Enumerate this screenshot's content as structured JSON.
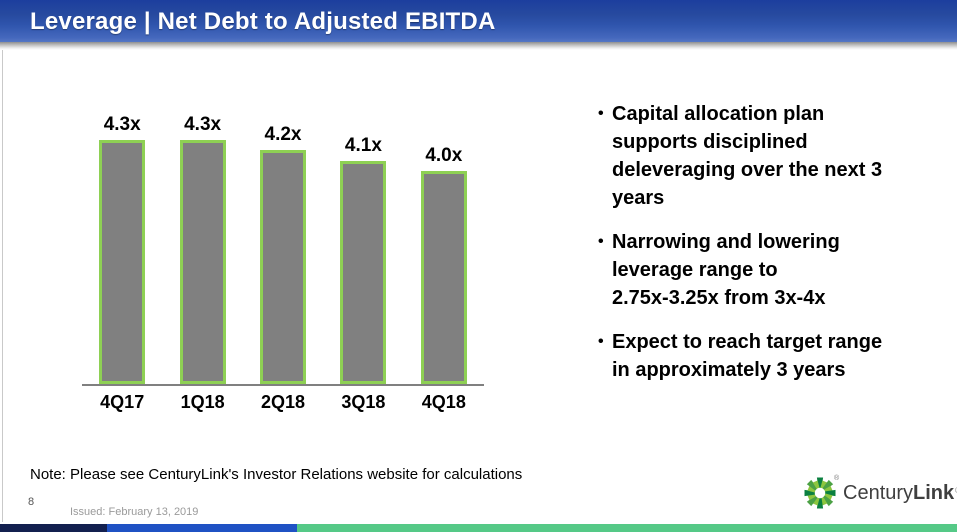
{
  "header": {
    "title": "Leverage | Net Debt to Adjusted EBITDA"
  },
  "chart_data": {
    "type": "bar",
    "categories": [
      "4Q17",
      "1Q18",
      "2Q18",
      "3Q18",
      "4Q18"
    ],
    "values": [
      4.3,
      4.3,
      4.2,
      4.1,
      4.0
    ],
    "bar_labels": [
      "4.3x",
      "4.3x",
      "4.2x",
      "4.1x",
      "4.0x"
    ],
    "title": "",
    "xlabel": "",
    "ylabel": "",
    "ylim": [
      2.0,
      4.75
    ],
    "grid": false,
    "legend": false,
    "bar_fill": "#808080",
    "bar_border": "#8ed054",
    "axis_color": "#808080"
  },
  "bullets": [
    {
      "dot": "•",
      "text": "Capital allocation plan\nsupports disciplined\ndeleveraging over the next 3\nyears"
    },
    {
      "dot": "•",
      "text": "Narrowing and lowering\nleverage range to\n2.75x-3.25x from 3x-4x"
    },
    {
      "dot": "•",
      "text": "Expect to reach target range\nin approximately 3 years"
    }
  ],
  "note": "Note: Please see CenturyLink's Investor Relations website for calculations",
  "footer": {
    "page_number": "8",
    "issued": "Issued: February 13, 2019"
  },
  "logo": {
    "name_regular": "Century",
    "name_bold": "Link",
    "registered": "®",
    "icon": "starburst-icon"
  },
  "colors": {
    "header_gradient_top": "#1c3e9e",
    "header_gradient_bottom": "#5578c5",
    "strip_navy": "#13204f",
    "strip_blue": "#1f52c4",
    "strip_green": "#55c987",
    "logo_dark_green": "#0b8040",
    "logo_light_green": "#8cc63f",
    "logo_mid_green": "#4ba145"
  }
}
